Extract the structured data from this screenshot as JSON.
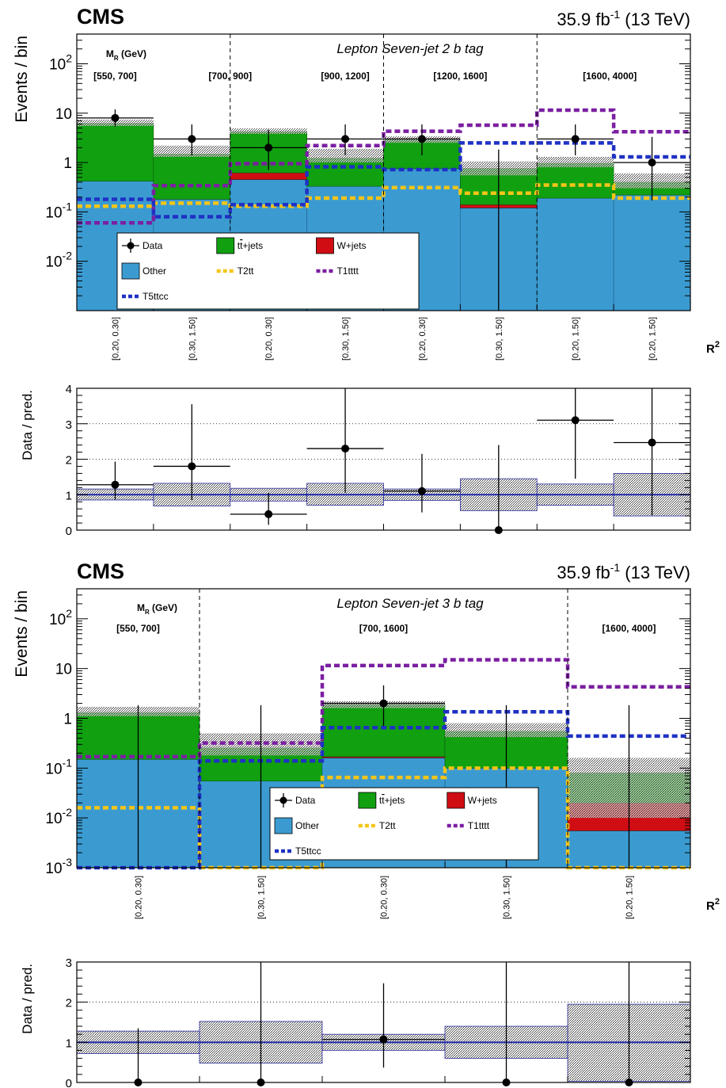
{
  "colors": {
    "ttbar": "#11a010",
    "wjets": "#d00d13",
    "other": "#3b9bd1",
    "t2tt": "#f5c518",
    "t1tttt": "#7b1fa2",
    "t5ttcc": "#1f31c4",
    "ratio_line": "#1f2aa8"
  },
  "chart_data": [
    {
      "type": "bar",
      "stacked": true,
      "log_y": true,
      "experiment": "CMS",
      "luminosity": "35.9 fb-1 (13 TeV)",
      "lumi_main": "35.9 fb",
      "lumi_sup": "-1",
      "lumi_rest": " (13 TeV)",
      "title": "Lepton Seven-jet 2 b tag",
      "ylabel": "Events / bin",
      "xlabel": "R2",
      "mr_label": "MR (GeV)",
      "mr_ranges": [
        "[550, 700]",
        "[700, 900]",
        "[900, 1200]",
        "[1200, 1600]",
        "[1600, 4000]"
      ],
      "categories": [
        "[0.20, 0.30]",
        "[0.30, 1.50]",
        "[0.20, 0.30]",
        "[0.30, 1.50]",
        "[0.20, 0.30]",
        "[0.30, 1.50]",
        "[0.20, 1.50]",
        "[0.20, 1.50]"
      ],
      "ylim": [
        0.001,
        400
      ],
      "y_ticks": [
        "10^-2",
        "10^-1",
        "1",
        "10",
        "10^2"
      ],
      "series": [
        {
          "name": "Other",
          "values": [
            0.42,
            0.18,
            0.45,
            0.33,
            0.75,
            0.12,
            0.19,
            0.22
          ]
        },
        {
          "name": "W+jets",
          "values": [
            0.0,
            0.0,
            0.17,
            0.0,
            0.0,
            0.02,
            0.0,
            0.0
          ]
        },
        {
          "name": "tt+jets",
          "values": [
            5.8,
            1.3,
            3.6,
            0.9,
            2.1,
            0.62,
            0.78,
            0.18
          ]
        },
        {
          "name": "T2tt",
          "values": [
            0.13,
            0.15,
            0.13,
            0.19,
            0.31,
            0.24,
            0.35,
            0.19
          ]
        },
        {
          "name": "T1tttt",
          "values": [
            0.06,
            0.34,
            0.95,
            2.2,
            4.3,
            5.7,
            11.5,
            4.2
          ]
        },
        {
          "name": "T5ttcc",
          "values": [
            0.18,
            0.08,
            0.14,
            0.82,
            0.72,
            2.5,
            2.5,
            1.3
          ]
        }
      ],
      "uncertainty_band": {
        "lo": [
          5.5,
          1.3,
          3.8,
          1.0,
          2.5,
          0.55,
          0.8,
          0.3
        ],
        "hi": [
          7.4,
          2.2,
          4.9,
          1.9,
          3.4,
          1.05,
          1.3,
          0.6
        ]
      },
      "data": {
        "name": "Data",
        "values": [
          8,
          3,
          2,
          3,
          3,
          0,
          3,
          1
        ],
        "err_lo": [
          2.7,
          1.6,
          1.3,
          1.6,
          1.6,
          0,
          1.6,
          0.83
        ],
        "err_hi": [
          3.9,
          2.9,
          2.6,
          2.9,
          2.9,
          1.84,
          2.9,
          2.3
        ]
      },
      "legend": [
        "Data",
        "tt+jets",
        "W+jets",
        "Other",
        "T2tt",
        "T1tttt",
        "T5ttcc"
      ],
      "legend_ttbar_parts": [
        "t",
        "t",
        "+jets"
      ],
      "ratio": {
        "ylabel": "Data / pred.",
        "ylim": [
          0,
          4
        ],
        "y_ticks": [
          "0",
          "1",
          "2",
          "3",
          "4"
        ],
        "values": [
          1.28,
          1.8,
          0.45,
          2.3,
          1.1,
          0.0,
          3.1,
          2.47
        ],
        "err_lo": [
          0.42,
          0.95,
          0.3,
          1.25,
          0.6,
          0.0,
          1.65,
          2.05
        ],
        "err_hi": [
          0.65,
          1.75,
          0.6,
          2.2,
          1.05,
          2.4,
          3.0,
          5.6
        ],
        "band_lo": [
          0.85,
          0.68,
          0.82,
          0.7,
          0.84,
          0.55,
          0.7,
          0.4
        ],
        "band_hi": [
          1.16,
          1.32,
          1.18,
          1.32,
          1.16,
          1.45,
          1.3,
          1.6
        ]
      }
    },
    {
      "type": "bar",
      "stacked": true,
      "log_y": true,
      "experiment": "CMS",
      "luminosity": "35.9 fb-1 (13 TeV)",
      "lumi_main": "35.9 fb",
      "lumi_sup": "-1",
      "lumi_rest": " (13 TeV)",
      "title": "Lepton Seven-jet 3 b tag",
      "ylabel": "Events / bin",
      "xlabel": "R2",
      "mr_label": "MR (GeV)",
      "mr_ranges": [
        "[550, 700]",
        "[700, 1600]",
        "[1600, 4000]"
      ],
      "categories": [
        "[0.20, 0.30]",
        "[0.30, 1.50]",
        "[0.20, 0.30]",
        "[0.30, 1.50]",
        "[0.20, 1.50]"
      ],
      "ylim": [
        0.001,
        400
      ],
      "y_ticks": [
        "10^-3",
        "10^-2",
        "10^-1",
        "1",
        "10",
        "10^2"
      ],
      "series": [
        {
          "name": "Other",
          "values": [
            0.15,
            0.055,
            0.16,
            0.1,
            0.0055
          ]
        },
        {
          "name": "W+jets",
          "values": [
            0.0,
            0.0,
            0.01,
            0.0,
            0.0145
          ]
        },
        {
          "name": "tt+jets",
          "values": [
            1.15,
            0.2,
            1.7,
            0.45,
            0.06
          ]
        },
        {
          "name": "T2tt",
          "values": [
            0.016,
            0.00095,
            0.065,
            0.1,
            0.00095
          ]
        },
        {
          "name": "T1tttt",
          "values": [
            0.17,
            0.32,
            11.5,
            15.0,
            4.3
          ]
        },
        {
          "name": "T5ttcc",
          "values": [
            0.0009,
            0.14,
            0.65,
            1.35,
            0.44
          ]
        }
      ],
      "uncertainty_band": {
        "lo": [
          1.1,
          0.18,
          1.6,
          0.42,
          0.01
        ],
        "hi": [
          1.7,
          0.5,
          2.2,
          0.8,
          0.16
        ]
      },
      "data": {
        "name": "Data",
        "values": [
          0,
          0,
          2,
          0,
          0
        ],
        "err_lo": [
          0,
          0,
          1.3,
          0,
          0
        ],
        "err_hi": [
          1.84,
          1.84,
          2.6,
          1.84,
          1.84
        ]
      },
      "legend": [
        "Data",
        "tt+jets",
        "W+jets",
        "Other",
        "T2tt",
        "T1tttt",
        "T5ttcc"
      ],
      "legend_ttbar_parts": [
        "t",
        "t",
        "+jets"
      ],
      "ratio": {
        "ylabel": "Data / pred.",
        "ylim": [
          0,
          3
        ],
        "y_ticks": [
          "0",
          "1",
          "2",
          "3"
        ],
        "values": [
          0.0,
          0.0,
          1.07,
          0.0,
          0.0
        ],
        "err_lo": [
          0.0,
          0.0,
          0.7,
          0.0,
          0.0
        ],
        "err_hi": [
          1.35,
          3.5,
          1.4,
          3.5,
          3.5
        ],
        "band_lo": [
          0.72,
          0.48,
          0.8,
          0.6,
          0.03
        ],
        "band_hi": [
          1.28,
          1.52,
          1.2,
          1.4,
          1.95
        ]
      }
    }
  ]
}
